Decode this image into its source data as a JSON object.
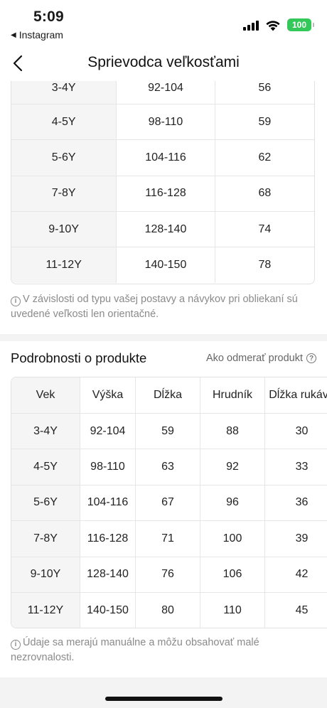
{
  "status": {
    "time": "5:09",
    "back_app": "Instagram",
    "battery": "100"
  },
  "nav": {
    "title": "Sprievodca veľkosťami"
  },
  "size_table": {
    "rows": [
      [
        "3-4Y",
        "92-104",
        "56"
      ],
      [
        "4-5Y",
        "98-110",
        "59"
      ],
      [
        "5-6Y",
        "104-116",
        "62"
      ],
      [
        "7-8Y",
        "116-128",
        "68"
      ],
      [
        "9-10Y",
        "128-140",
        "74"
      ],
      [
        "11-12Y",
        "140-150",
        "78"
      ]
    ]
  },
  "note_1": "V závislosti od typu vašej postavy a návykov pri obliekaní sú uvedené veľkosti len orientačné.",
  "details": {
    "title": "Podrobnosti o produkte",
    "measure_link": "Ako odmerať produkt",
    "headers": [
      "Vek",
      "Výška",
      "Dĺžka",
      "Hrudník",
      "Dĺžka rukáva"
    ],
    "rows": [
      [
        "3-4Y",
        "92-104",
        "59",
        "88",
        "30"
      ],
      [
        "4-5Y",
        "98-110",
        "63",
        "92",
        "33"
      ],
      [
        "5-6Y",
        "104-116",
        "67",
        "96",
        "36"
      ],
      [
        "7-8Y",
        "116-128",
        "71",
        "100",
        "39"
      ],
      [
        "9-10Y",
        "128-140",
        "76",
        "106",
        "42"
      ],
      [
        "11-12Y",
        "140-150",
        "80",
        "110",
        "45"
      ]
    ]
  },
  "note_2": "Údaje sa merajú manuálne a môžu obsahovať malé nezrovnalosti.",
  "colors": {
    "battery": "#34c759",
    "first_column_bg": "#f5f5f5",
    "note_text": "#8a8a8a"
  }
}
